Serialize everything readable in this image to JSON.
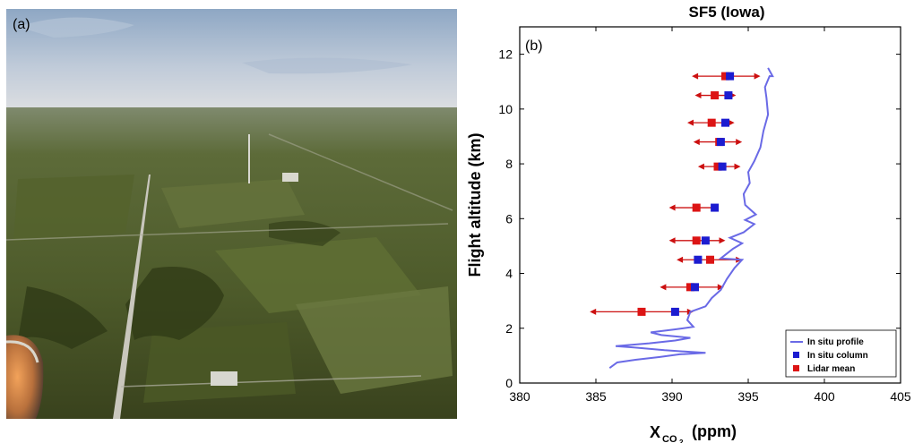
{
  "photo": {
    "label": "(a)",
    "colors": {
      "sky_top": "#8ea7c4",
      "sky_horizon": "#d9dde4",
      "field_dark": "#3f4a22",
      "field_light": "#6d7a43",
      "road": "#c9c7bd"
    }
  },
  "chart_data": {
    "type": "line",
    "panel_label": "(b)",
    "title": "SF5 (Iowa)",
    "xlabel_main": "X",
    "xlabel_sub": "CO",
    "xlabel_sub2": "2",
    "xlabel_unit": "(ppm)",
    "ylabel": "Flight altitude (km)",
    "xlim": [
      380,
      405
    ],
    "ylim": [
      0,
      13
    ],
    "xticks": [
      380,
      385,
      390,
      395,
      400,
      405
    ],
    "yticks": [
      0,
      2,
      4,
      6,
      8,
      10,
      12
    ],
    "legend": {
      "placement": "bottom-right",
      "entries": [
        "In situ profile",
        "In situ  column",
        "Lidar mean"
      ]
    },
    "series": [
      {
        "name": "In situ profile",
        "kind": "line",
        "color": "#6a6ae6",
        "points": [
          [
            385.9,
            0.55
          ],
          [
            386.4,
            0.75
          ],
          [
            387.6,
            0.85
          ],
          [
            389.2,
            0.95
          ],
          [
            390.5,
            1.05
          ],
          [
            392.2,
            1.1
          ],
          [
            389.5,
            1.2
          ],
          [
            387.5,
            1.3
          ],
          [
            386.3,
            1.35
          ],
          [
            388.5,
            1.45
          ],
          [
            390.2,
            1.55
          ],
          [
            391.2,
            1.65
          ],
          [
            389.3,
            1.75
          ],
          [
            388.6,
            1.85
          ],
          [
            390.1,
            1.95
          ],
          [
            391.4,
            2.05
          ],
          [
            391.0,
            2.3
          ],
          [
            391.2,
            2.6
          ],
          [
            392.2,
            2.8
          ],
          [
            392.6,
            3.1
          ],
          [
            393.2,
            3.4
          ],
          [
            393.6,
            3.8
          ],
          [
            394.1,
            4.2
          ],
          [
            394.6,
            4.5
          ],
          [
            393.2,
            4.55
          ],
          [
            394.0,
            4.9
          ],
          [
            394.6,
            5.1
          ],
          [
            393.8,
            5.3
          ],
          [
            394.7,
            5.5
          ],
          [
            395.4,
            5.8
          ],
          [
            394.8,
            5.95
          ],
          [
            395.5,
            6.15
          ],
          [
            394.8,
            6.5
          ],
          [
            394.7,
            6.9
          ],
          [
            395.1,
            7.3
          ],
          [
            395.0,
            7.7
          ],
          [
            395.4,
            8.1
          ],
          [
            395.8,
            8.6
          ],
          [
            396.0,
            9.2
          ],
          [
            396.3,
            9.8
          ],
          [
            396.2,
            10.4
          ],
          [
            396.1,
            10.8
          ],
          [
            396.4,
            11.2
          ],
          [
            396.6,
            11.2
          ],
          [
            396.3,
            11.5
          ]
        ]
      },
      {
        "name": "In situ  column",
        "kind": "markers",
        "color": "#1c1cd0",
        "points": [
          [
            390.2,
            2.6
          ],
          [
            391.5,
            3.5
          ],
          [
            391.7,
            4.5
          ],
          [
            392.2,
            5.2
          ],
          [
            392.8,
            6.4
          ],
          [
            393.3,
            7.9
          ],
          [
            393.2,
            8.8
          ],
          [
            393.5,
            9.5
          ],
          [
            393.7,
            10.5
          ],
          [
            393.8,
            11.2
          ]
        ]
      },
      {
        "name": "Lidar mean",
        "kind": "markers_with_error",
        "color": "#dc1414",
        "errorbar_color": "#cc1010",
        "points": [
          [
            388.0,
            2.6,
            384.6,
            391.4
          ],
          [
            391.2,
            3.5,
            389.2,
            393.4
          ],
          [
            392.5,
            4.5,
            390.3,
            394.6
          ],
          [
            391.6,
            5.2,
            389.8,
            393.5
          ],
          [
            391.6,
            6.4,
            389.8,
            393.0
          ],
          [
            393.0,
            7.9,
            391.7,
            394.5
          ],
          [
            393.1,
            8.8,
            391.4,
            394.6
          ],
          [
            392.6,
            9.5,
            391.0,
            394.1
          ],
          [
            392.8,
            10.5,
            391.5,
            394.2
          ],
          [
            393.5,
            11.2,
            391.3,
            395.8
          ]
        ]
      }
    ]
  }
}
